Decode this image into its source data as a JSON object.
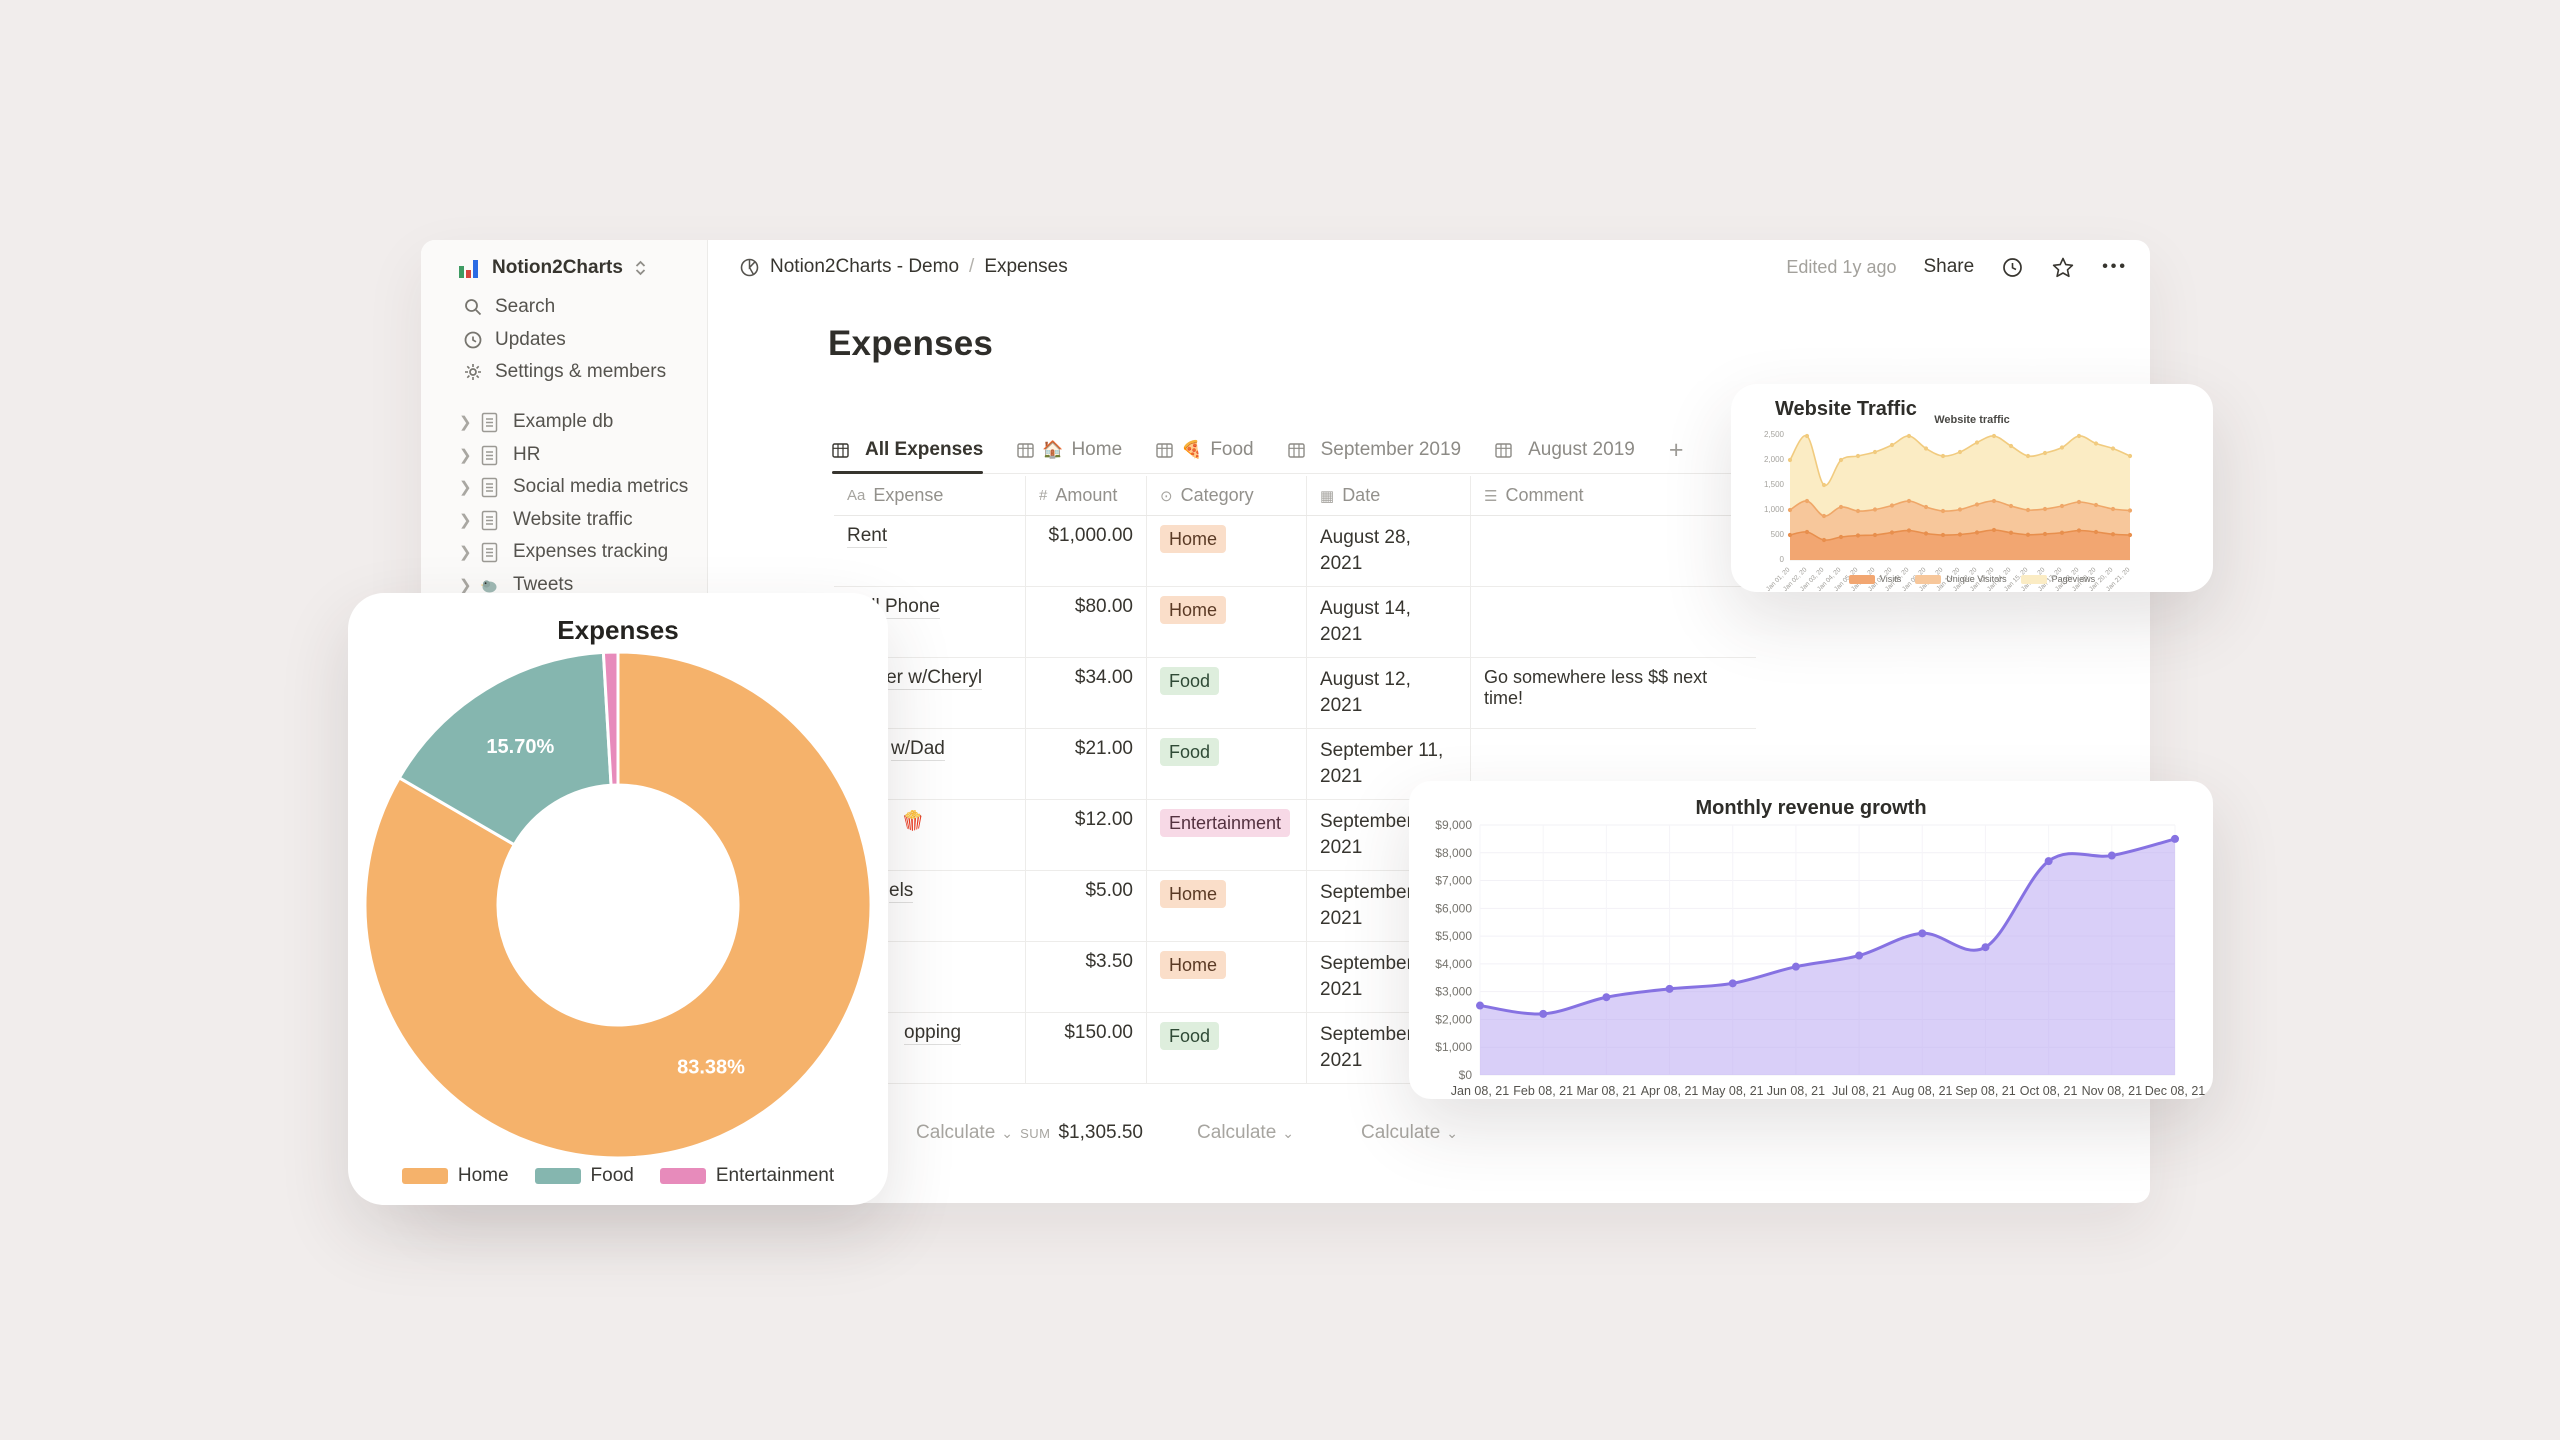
{
  "sidebar": {
    "workspace": {
      "name": "Notion2Charts",
      "logo_bar_colors": [
        "#3E9B63",
        "#D6453F",
        "#2B6BE4"
      ]
    },
    "menu": [
      {
        "label": "Search"
      },
      {
        "label": "Updates"
      },
      {
        "label": "Settings & members"
      }
    ],
    "pages": [
      {
        "label": "Example db"
      },
      {
        "label": "HR"
      },
      {
        "label": "Social media metrics"
      },
      {
        "label": "Website traffic"
      },
      {
        "label": "Expenses tracking"
      },
      {
        "label": "Tweets"
      }
    ]
  },
  "topbar": {
    "breadcrumb_root": "Notion2Charts - Demo",
    "breadcrumb_sep": "/",
    "breadcrumb_page": "Expenses",
    "edited": "Edited 1y ago",
    "share": "Share",
    "more": "•••"
  },
  "main": {
    "title": "Expenses",
    "tabs": [
      {
        "label": "All Expenses",
        "emoji": ""
      },
      {
        "label": "Home",
        "emoji": "🏠"
      },
      {
        "label": "Food",
        "emoji": "🍕"
      },
      {
        "label": "September 2019",
        "emoji": ""
      },
      {
        "label": "August 2019",
        "emoji": ""
      }
    ],
    "add_view": "+"
  },
  "table": {
    "headers": [
      {
        "label": "Expense",
        "icon": "Aa"
      },
      {
        "label": "Amount",
        "icon": "#"
      },
      {
        "label": "Category",
        "icon": "⊙"
      },
      {
        "label": "Date",
        "icon": "▦"
      },
      {
        "label": "Comment",
        "icon": "☰"
      }
    ],
    "rows": [
      {
        "expense": "Rent",
        "amount": "$1,000.00",
        "category": "Home",
        "date": "August 28, 2021",
        "comment": ""
      },
      {
        "expense": "Cell Phone",
        "amount": "$80.00",
        "category": "Home",
        "date": "August 14, 2021",
        "comment": ""
      },
      {
        "expense": "Dinner w/Cheryl",
        "amount": "$34.00",
        "category": "Food",
        "date": "August 12, 2021",
        "comment": "Go somewhere less $$ next time!"
      },
      {
        "expense": "w/Dad",
        "amount": "$21.00",
        "category": "Food",
        "date": "September 11, 2021",
        "comment": ""
      },
      {
        "expense": "🍿",
        "amount": "$12.00",
        "category": "Entertainment",
        "date": "September 22, 2021",
        "comment": ""
      },
      {
        "expense": "els",
        "amount": "$5.00",
        "category": "Home",
        "date": "September 3, 2021",
        "comment": ""
      },
      {
        "expense": "",
        "amount": "$3.50",
        "category": "Home",
        "date": "September 10, 2021",
        "comment": ""
      },
      {
        "expense": "opping",
        "amount": "$150.00",
        "category": "Food",
        "date": "September 28, 2021",
        "comment": ""
      }
    ],
    "footer": {
      "calculate": "Calculate",
      "chevron": "⌄",
      "sum_label": "SUM",
      "sum_value": "$1,305.50"
    }
  },
  "chart_data": [
    {
      "type": "pie",
      "title": "Expenses",
      "donut": true,
      "labels": [
        "Home",
        "Food",
        "Entertainment"
      ],
      "values": [
        83.38,
        15.7,
        0.92
      ],
      "value_labels": [
        "83.38%",
        "15.70%",
        ""
      ],
      "colors": [
        "#F5B26B",
        "#85B6AF",
        "#E78BBB"
      ],
      "legend_position": "bottom"
    },
    {
      "type": "area",
      "stacked": true,
      "card_title": "Website Traffic",
      "title": "Website traffic",
      "x": [
        "Jan 01, 20",
        "Jan 02, 20",
        "Jan 03, 20",
        "Jan 04, 20",
        "Jan 05, 20",
        "Jan 06, 20",
        "Jan 07, 20",
        "Jan 08, 20",
        "Jan 09, 20",
        "Jan 10, 20",
        "Jan 11, 20",
        "Jan 12, 20",
        "Jan 13, 20",
        "Jan 14, 20",
        "Jan 15, 20",
        "Jan 16, 20",
        "Jan 17, 20",
        "Jan 18, 20",
        "Jan 19, 20",
        "Jan 20, 20",
        "Jan 21, 20"
      ],
      "ylim": [
        0,
        2500
      ],
      "yticks": [
        0,
        500,
        1000,
        1500,
        2000,
        2500
      ],
      "values_are_cumulative": true,
      "series": [
        {
          "name": "Pageviews",
          "fill": "#FBECC4",
          "line": "#F1CB7F",
          "values": [
            2000,
            2480,
            1500,
            2000,
            2080,
            2160,
            2300,
            2480,
            2230,
            2080,
            2160,
            2350,
            2480,
            2280,
            2080,
            2140,
            2250,
            2480,
            2330,
            2230,
            2080
          ]
        },
        {
          "name": "Unique Visitors",
          "fill": "#F7C79B",
          "line": "#EFA768",
          "values": [
            1000,
            1180,
            880,
            1060,
            980,
            1010,
            1090,
            1180,
            1060,
            980,
            1010,
            1110,
            1180,
            1080,
            1000,
            1020,
            1080,
            1160,
            1100,
            1020,
            990
          ]
        },
        {
          "name": "Visits",
          "fill": "#F2A671",
          "line": "#E88F4D",
          "values": [
            500,
            560,
            400,
            460,
            490,
            500,
            550,
            590,
            530,
            500,
            510,
            550,
            600,
            545,
            505,
            520,
            545,
            590,
            560,
            515,
            500
          ]
        }
      ],
      "legend_order": [
        "Visits",
        "Unique Visitors",
        "Pageviews"
      ],
      "legend_colors": [
        "#F2A671",
        "#F7C79B",
        "#FBECC4"
      ],
      "legend_position": "bottom"
    },
    {
      "type": "area",
      "card_title": "Monthly revenue growth",
      "x": [
        "Jan 08, 21",
        "Feb 08, 21",
        "Mar 08, 21",
        "Apr 08, 21",
        "May 08, 21",
        "Jun 08, 21",
        "Jul 08, 21",
        "Aug 08, 21",
        "Sep 08, 21",
        "Oct 08, 21",
        "Nov 08, 21",
        "Dec 08, 21"
      ],
      "values": [
        2500,
        2200,
        2800,
        3100,
        3300,
        3900,
        4300,
        5100,
        4600,
        7700,
        7900,
        8500
      ],
      "ylim": [
        0,
        9000
      ],
      "ytick_labels": [
        "$0",
        "$1,000",
        "$2,000",
        "$3,000",
        "$4,000",
        "$5,000",
        "$6,000",
        "$7,000",
        "$8,000",
        "$9,000"
      ],
      "line_color": "#8672E2",
      "fill_color": "#B9A7F2",
      "grid": true,
      "legend_position": "none"
    }
  ]
}
